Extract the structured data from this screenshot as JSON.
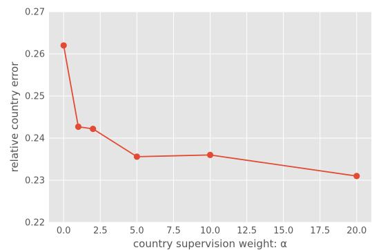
{
  "chart_data": {
    "type": "line",
    "title": "",
    "xlabel": "country supervision weight: α",
    "ylabel": "relative country error",
    "xlim": [
      -1.0,
      21.0
    ],
    "ylim": [
      0.22,
      0.27
    ],
    "xticks": [
      0.0,
      2.5,
      5.0,
      7.5,
      10.0,
      12.5,
      15.0,
      17.5,
      20.0
    ],
    "xtick_labels": [
      "0.0",
      "2.5",
      "5.0",
      "7.5",
      "10.0",
      "12.5",
      "15.0",
      "17.5",
      "20.0"
    ],
    "yticks": [
      0.22,
      0.23,
      0.24,
      0.25,
      0.26,
      0.27
    ],
    "ytick_labels": [
      "0.22",
      "0.23",
      "0.24",
      "0.25",
      "0.26",
      "0.27"
    ],
    "grid": true,
    "legend": "none",
    "series": [
      {
        "x": [
          0,
          1,
          2,
          5,
          10,
          20
        ],
        "y": [
          0.262,
          0.2427,
          0.2422,
          0.2356,
          0.236,
          0.231
        ],
        "color": "#E24A33",
        "marker": "circle"
      }
    ],
    "background_color": "#E5E5E5",
    "grid_color": "#FFFFFF"
  }
}
